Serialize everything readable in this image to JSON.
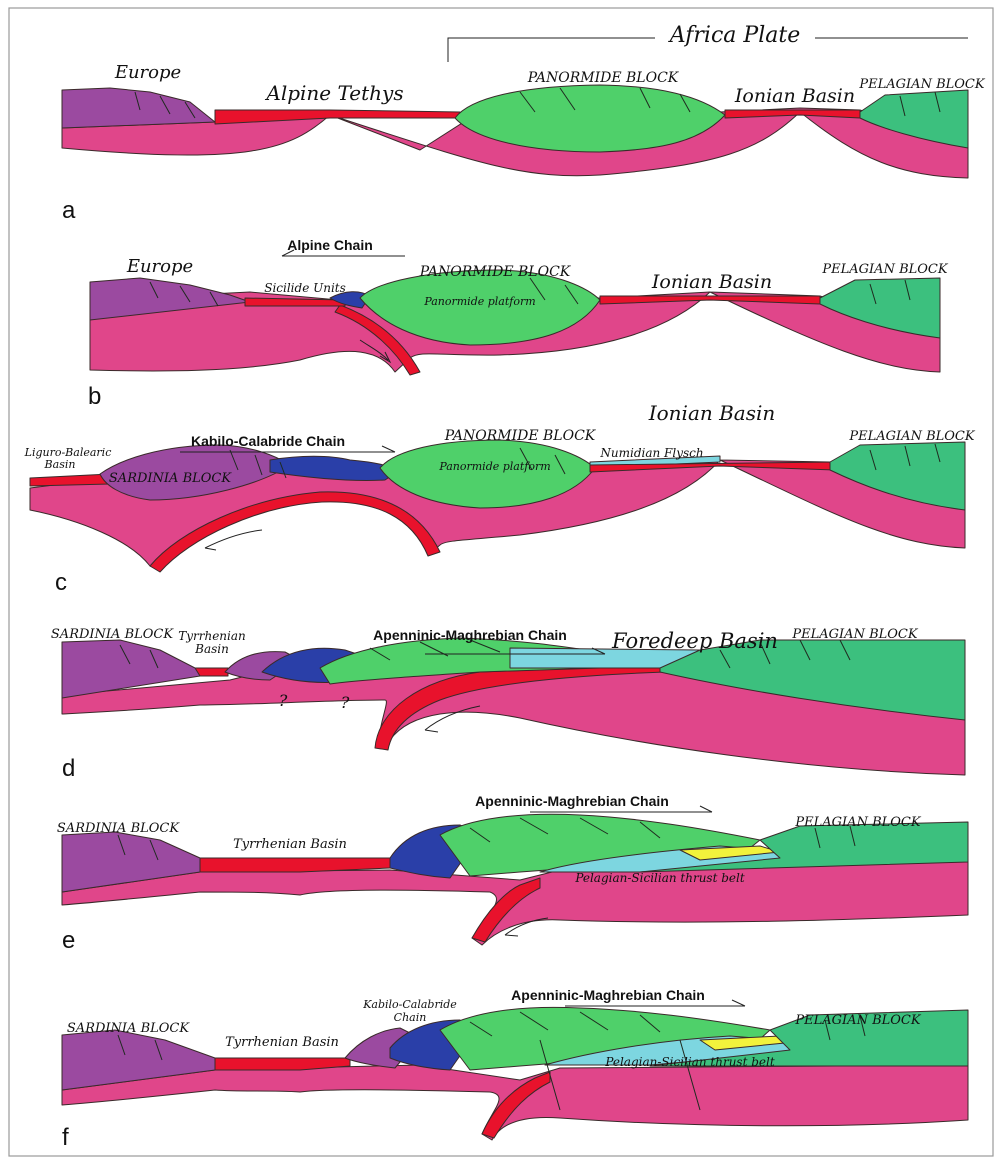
{
  "colors": {
    "continental_purple": "#9b4aa0",
    "mantle_pink": "#e0468a",
    "oceanic_red": "#e8122c",
    "platform_green": "#4fd06a",
    "block_green": "#3cc07e",
    "flysch_blue": "#2a3fa8",
    "foredeep_cyan": "#7dd6e0",
    "thrust_yellow": "#f2f23c"
  },
  "panels": [
    {
      "letter": "a",
      "labels": {
        "africa_plate": "Africa Plate",
        "europe": "Europe",
        "alpine_tethys": "Alpine Tethys",
        "panormide_block": "PANORMIDE BLOCK",
        "ionian_basin": "Ionian Basin",
        "pelagian_block": "PELAGIAN BLOCK"
      }
    },
    {
      "letter": "b",
      "labels": {
        "europe": "Europe",
        "alpine_chain": "Alpine Chain",
        "sicilide_units": "Sicilide Units",
        "panormide_block": "PANORMIDE BLOCK",
        "panormide_platform": "Panormide platform",
        "ionian_basin": "Ionian Basin",
        "pelagian_block": "PELAGIAN BLOCK"
      }
    },
    {
      "letter": "c",
      "labels": {
        "ligure_balearic": "Liguro-Balearic",
        "basin": "Basin",
        "sardinia_block": "SARDINIA BLOCK",
        "kabilo_calabride_chain": "Kabilo-Calabride Chain",
        "panormide_block": "PANORMIDE BLOCK",
        "panormide_platform": "Panormide platform",
        "numidian_flysch": "Numidian Flysch",
        "ionian_basin": "Ionian Basin",
        "pelagian_block": "PELAGIAN BLOCK"
      }
    },
    {
      "letter": "d",
      "labels": {
        "sardinia_block": "SARDINIA BLOCK",
        "tyrrhenian": "Tyrrhenian",
        "basin": "Basin",
        "apenninic_maghrebian_chain": "Apenninic-Maghrebian Chain",
        "foredeep_basin": "Foredeep Basin",
        "pelagian_block": "PELAGIAN BLOCK",
        "question_1": "?",
        "question_2": "?"
      }
    },
    {
      "letter": "e",
      "labels": {
        "sardinia_block": "SARDINIA BLOCK",
        "tyrrhenian_basin": "Tyrrhenian Basin",
        "apenninic_maghrebian_chain": "Apenninic-Maghrebian Chain",
        "pelagian_block": "PELAGIAN BLOCK",
        "pelagian_sicilian_thrust_belt": "Pelagian-Sicilian thrust belt"
      }
    },
    {
      "letter": "f",
      "labels": {
        "sardinia_block": "SARDINIA BLOCK",
        "tyrrhenian_basin": "Tyrrhenian Basin",
        "kabilo_calabride": "Kabilo-Calabride",
        "chain": "Chain",
        "apenninic_maghrebian_chain": "Apenninic-Maghrebian Chain",
        "pelagian_block": "PELAGIAN BLOCK",
        "pelagian_sicilian_thrust_belt": "Pelagian-Sicilian thrust belt"
      }
    }
  ]
}
